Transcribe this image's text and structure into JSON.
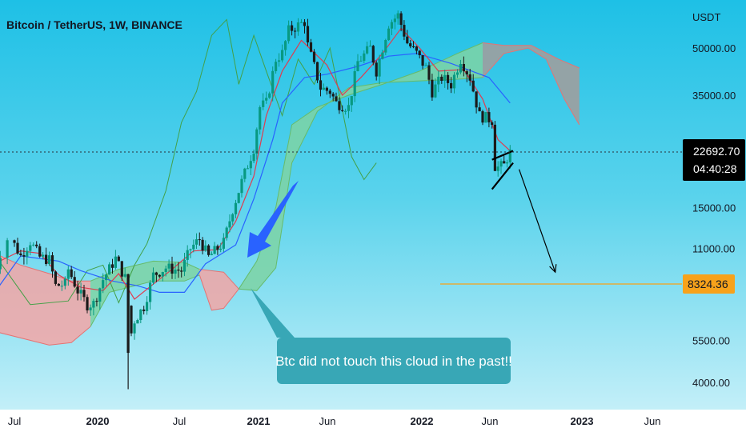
{
  "chart_data": {
    "type": "candlestick",
    "title": "Bitcoin / TetherUS, 1W, BINANCE",
    "currency_label": "USDT",
    "y_scale": "log",
    "y_ticks": [
      "50000.00",
      "35000.00",
      "15000.00",
      "11000.00",
      "5500.00",
      "4000.00"
    ],
    "y_tick_values": [
      50000,
      35000,
      15000,
      11000,
      5500,
      4000
    ],
    "x_ticks": [
      {
        "label": "Jul",
        "date": "2019-07-01",
        "bold": false
      },
      {
        "label": "2020",
        "date": "2020-01-01",
        "bold": true
      },
      {
        "label": "Jul",
        "date": "2020-07-01",
        "bold": false
      },
      {
        "label": "2021",
        "date": "2021-01-01",
        "bold": true
      },
      {
        "label": "Jun",
        "date": "2021-06-01",
        "bold": false
      },
      {
        "label": "2022",
        "date": "2022-01-01",
        "bold": true
      },
      {
        "label": "Jun",
        "date": "2022-06-01",
        "bold": false
      },
      {
        "label": "2023",
        "date": "2023-01-01",
        "bold": true
      },
      {
        "label": "Jun",
        "date": "2023-06-01",
        "bold": false
      }
    ],
    "x_range": [
      "2019-06-01",
      "2023-09-01"
    ],
    "y_range": [
      3600,
      70000
    ],
    "current_price": {
      "label": "22692.70",
      "value": 22692.7,
      "countdown": "04:40:28",
      "color": "#000000"
    },
    "target_price": {
      "label": "8324.36",
      "value": 8324.36,
      "color": "#f7a21b"
    },
    "annotation": {
      "text": "Btc did not touch this cloud in the past!!"
    },
    "colors": {
      "up": "#089981",
      "down": "#1a1a1a",
      "tenkan": "#e03c4f",
      "kijun": "#2962ff",
      "chikou": "#43a047",
      "cloud_bull": "#7ed3a4",
      "cloud_bear": "#f3a6a6",
      "cloud_future": "#9e9e9e",
      "arrow_blue": "#2962ff"
    },
    "price_path": [
      [
        "2019-06-03",
        8700
      ],
      [
        "2019-06-24",
        11800
      ],
      [
        "2019-07-15",
        10400
      ],
      [
        "2019-08-05",
        11600
      ],
      [
        "2019-08-26",
        10300
      ],
      [
        "2019-09-16",
        10100
      ],
      [
        "2019-09-30",
        8300
      ],
      [
        "2019-10-21",
        8400
      ],
      [
        "2019-10-28",
        9400
      ],
      [
        "2019-11-18",
        8000
      ],
      [
        "2019-12-09",
        7200
      ],
      [
        "2019-12-23",
        7250
      ],
      [
        "2020-01-13",
        8700
      ],
      [
        "2020-02-10",
        10200
      ],
      [
        "2020-03-02",
        8800
      ],
      [
        "2020-03-16",
        5800
      ],
      [
        "2020-03-23",
        6400
      ],
      [
        "2020-04-13",
        7100
      ],
      [
        "2020-05-04",
        9000
      ],
      [
        "2020-06-01",
        9500
      ],
      [
        "2020-07-06",
        9300
      ],
      [
        "2020-07-27",
        11000
      ],
      [
        "2020-08-17",
        11800
      ],
      [
        "2020-09-07",
        10300
      ],
      [
        "2020-10-12",
        11500
      ],
      [
        "2020-11-02",
        14800
      ],
      [
        "2020-11-23",
        18200
      ],
      [
        "2020-12-21",
        23500
      ],
      [
        "2021-01-04",
        32000
      ],
      [
        "2021-01-18",
        33000
      ],
      [
        "2021-02-08",
        46000
      ],
      [
        "2021-02-22",
        48000
      ],
      [
        "2021-03-08",
        57000
      ],
      [
        "2021-04-12",
        61000
      ],
      [
        "2021-04-19",
        51000
      ],
      [
        "2021-05-17",
        37000
      ],
      [
        "2021-06-07",
        36000
      ],
      [
        "2021-06-21",
        33000
      ],
      [
        "2021-07-19",
        32000
      ],
      [
        "2021-08-09",
        45000
      ],
      [
        "2021-09-06",
        50000
      ],
      [
        "2021-09-20",
        42000
      ],
      [
        "2021-10-18",
        60000
      ],
      [
        "2021-11-08",
        64000
      ],
      [
        "2021-11-29",
        52000
      ],
      [
        "2021-12-20",
        48000
      ],
      [
        "2022-01-10",
        43000
      ],
      [
        "2022-01-24",
        36000
      ],
      [
        "2022-02-14",
        40000
      ],
      [
        "2022-03-07",
        38000
      ],
      [
        "2022-03-28",
        46000
      ],
      [
        "2022-04-18",
        40000
      ],
      [
        "2022-05-09",
        30000
      ],
      [
        "2022-06-06",
        29000
      ],
      [
        "2022-06-13",
        20500
      ],
      [
        "2022-06-20",
        20300
      ],
      [
        "2022-07-04",
        20600
      ],
      [
        "2022-07-11",
        21800
      ],
      [
        "2022-07-18",
        22692
      ]
    ],
    "tenkan": [
      [
        "2019-06-03",
        9500
      ],
      [
        "2019-07-15",
        10800
      ],
      [
        "2019-08-26",
        10600
      ],
      [
        "2019-10-07",
        9000
      ],
      [
        "2019-11-25",
        8200
      ],
      [
        "2020-01-13",
        8000
      ],
      [
        "2020-02-17",
        9100
      ],
      [
        "2020-03-23",
        7500
      ],
      [
        "2020-05-04",
        8400
      ],
      [
        "2020-06-15",
        9400
      ],
      [
        "2020-08-03",
        10800
      ],
      [
        "2020-09-28",
        10900
      ],
      [
        "2020-11-09",
        13500
      ],
      [
        "2020-12-21",
        19000
      ],
      [
        "2021-01-18",
        30000
      ],
      [
        "2021-02-22",
        42000
      ],
      [
        "2021-04-05",
        53000
      ],
      [
        "2021-05-31",
        44000
      ],
      [
        "2021-07-05",
        35000
      ],
      [
        "2021-08-16",
        40000
      ],
      [
        "2021-10-04",
        48000
      ],
      [
        "2021-11-15",
        58000
      ],
      [
        "2021-12-27",
        50000
      ],
      [
        "2022-02-07",
        42000
      ],
      [
        "2022-04-04",
        42500
      ],
      [
        "2022-05-16",
        34000
      ],
      [
        "2022-06-20",
        25000
      ],
      [
        "2022-07-18",
        23000
      ]
    ],
    "kijun": [
      [
        "2019-06-03",
        7200
      ],
      [
        "2019-07-15",
        10400
      ],
      [
        "2019-10-07",
        10000
      ],
      [
        "2019-11-25",
        9300
      ],
      [
        "2020-02-03",
        8600
      ],
      [
        "2020-03-30",
        8300
      ],
      [
        "2020-05-18",
        7900
      ],
      [
        "2020-07-13",
        7900
      ],
      [
        "2020-08-31",
        9800
      ],
      [
        "2020-11-09",
        11300
      ],
      [
        "2020-12-21",
        16000
      ],
      [
        "2021-02-01",
        25000
      ],
      [
        "2021-02-22",
        33000
      ],
      [
        "2021-04-12",
        40000
      ],
      [
        "2021-05-31",
        41000
      ],
      [
        "2021-08-09",
        43500
      ],
      [
        "2021-10-18",
        47000
      ],
      [
        "2021-12-20",
        48000
      ],
      [
        "2022-03-07",
        44500
      ],
      [
        "2022-05-30",
        40000
      ],
      [
        "2022-07-18",
        33000
      ]
    ],
    "chikou": [
      [
        "2019-06-03",
        11500
      ],
      [
        "2019-08-05",
        7200
      ],
      [
        "2019-10-28",
        7400
      ],
      [
        "2019-12-09",
        9300
      ],
      [
        "2020-01-13",
        9700
      ],
      [
        "2020-02-17",
        7300
      ],
      [
        "2020-03-23",
        9700
      ],
      [
        "2020-04-20",
        11400
      ],
      [
        "2020-06-01",
        17000
      ],
      [
        "2020-07-06",
        28500
      ],
      [
        "2020-08-10",
        36000
      ],
      [
        "2020-09-14",
        55000
      ],
      [
        "2020-10-19",
        62000
      ],
      [
        "2020-11-16",
        38000
      ],
      [
        "2020-12-21",
        55000
      ],
      [
        "2021-01-18",
        42000
      ],
      [
        "2021-02-22",
        30000
      ],
      [
        "2021-03-29",
        46000
      ],
      [
        "2021-05-03",
        38000
      ],
      [
        "2021-06-07",
        50000
      ],
      [
        "2021-07-26",
        22000
      ],
      [
        "2021-08-23",
        18500
      ],
      [
        "2021-09-20",
        21000
      ]
    ],
    "cloud": [
      {
        "kind": "bear",
        "top": [
          [
            "2019-06-01",
            11000
          ],
          [
            "2019-07-15",
            9700
          ],
          [
            "2019-09-16",
            9100
          ],
          [
            "2019-11-04",
            8600
          ],
          [
            "2019-12-16",
            8600
          ]
        ],
        "bottom": [
          [
            "2019-06-01",
            6000
          ],
          [
            "2019-09-16",
            5300
          ],
          [
            "2019-11-04",
            5400
          ],
          [
            "2019-12-16",
            6100
          ]
        ]
      },
      {
        "kind": "bull",
        "top": [
          [
            "2019-12-16",
            8600
          ],
          [
            "2020-02-17",
            9400
          ],
          [
            "2020-05-04",
            10000
          ],
          [
            "2020-07-13",
            9900
          ],
          [
            "2020-08-17",
            9400
          ]
        ],
        "bottom": [
          [
            "2019-12-16",
            6100
          ],
          [
            "2020-01-27",
            7900
          ],
          [
            "2020-05-04",
            8600
          ],
          [
            "2020-07-13",
            8600
          ],
          [
            "2020-08-17",
            9000
          ]
        ]
      },
      {
        "kind": "bear",
        "top": [
          [
            "2020-08-17",
            9400
          ],
          [
            "2020-10-12",
            9200
          ],
          [
            "2020-11-16",
            8100
          ]
        ],
        "bottom": [
          [
            "2020-08-17",
            9000
          ],
          [
            "2020-09-14",
            6900
          ],
          [
            "2020-10-12",
            7000
          ],
          [
            "2020-11-16",
            8100
          ]
        ]
      },
      {
        "kind": "bull",
        "top": [
          [
            "2020-11-16",
            8100
          ],
          [
            "2020-12-28",
            10000
          ],
          [
            "2021-02-08",
            15000
          ],
          [
            "2021-03-15",
            28000
          ],
          [
            "2021-05-10",
            32000
          ],
          [
            "2021-07-19",
            35000
          ],
          [
            "2021-10-04",
            38000
          ],
          [
            "2021-12-27",
            42000
          ],
          [
            "2022-03-21",
            48000
          ],
          [
            "2022-05-16",
            52000
          ]
        ],
        "bottom": [
          [
            "2020-11-16",
            8100
          ],
          [
            "2020-12-28",
            8000
          ],
          [
            "2021-02-08",
            9500
          ],
          [
            "2021-03-15",
            21000
          ],
          [
            "2021-05-10",
            31000
          ],
          [
            "2021-07-19",
            37000
          ],
          [
            "2021-10-04",
            38500
          ],
          [
            "2021-12-27",
            39000
          ],
          [
            "2022-03-21",
            39500
          ],
          [
            "2022-05-16",
            40000
          ]
        ]
      },
      {
        "kind": "future",
        "top": [
          [
            "2022-05-16",
            52000
          ],
          [
            "2022-07-04",
            51000
          ],
          [
            "2022-09-05",
            51000
          ],
          [
            "2022-11-07",
            46000
          ],
          [
            "2022-12-26",
            43000
          ]
        ],
        "bottom": [
          [
            "2022-05-16",
            40000
          ],
          [
            "2022-07-04",
            48000
          ],
          [
            "2022-08-29",
            50000
          ],
          [
            "2022-10-10",
            46000
          ],
          [
            "2022-11-21",
            34000
          ],
          [
            "2022-12-26",
            28000
          ]
        ]
      }
    ],
    "triangle_lines": [
      [
        [
          "2022-06-06",
          21500
        ],
        [
          "2022-07-25",
          23000
        ]
      ],
      [
        [
          "2022-06-06",
          17200
        ],
        [
          "2022-07-25",
          21000
        ]
      ]
    ],
    "down_arrow": [
      [
        "2022-08-08",
        20000
      ],
      [
        "2022-10-31",
        9200
      ]
    ],
    "blue_arrow": [
      [
        "2020-12-21",
        17000
      ],
      [
        "2020-10-05",
        10000
      ]
    ]
  }
}
